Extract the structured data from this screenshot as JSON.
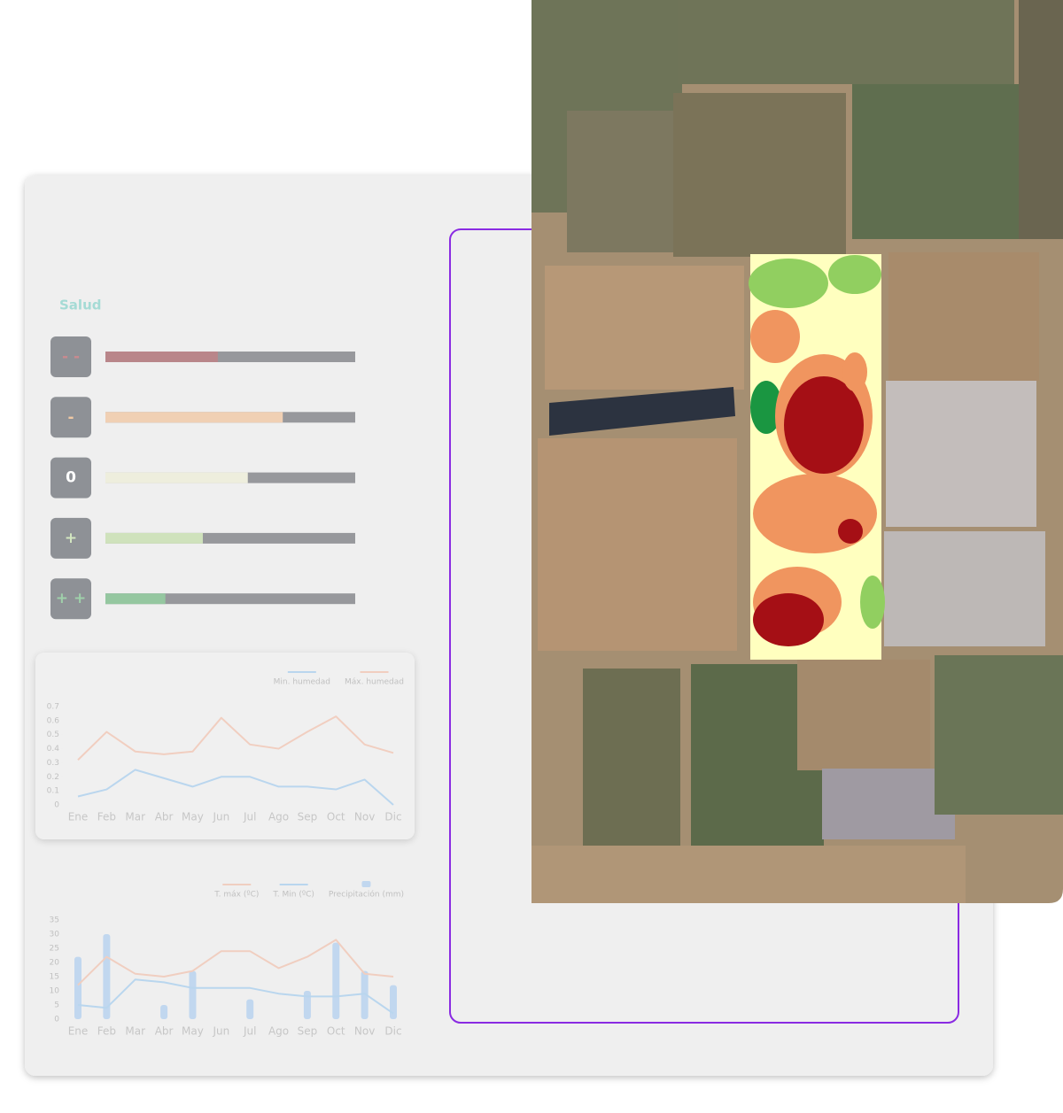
{
  "salud": {
    "title": "Salud",
    "levels": [
      {
        "label": "- -",
        "value": 0.45,
        "color": "#b9868a",
        "text_color": "#c98a8f"
      },
      {
        "label": "-",
        "value": 0.71,
        "color": "#f0d0b4",
        "text_color": "#f0c9a4"
      },
      {
        "label": "0",
        "value": 0.57,
        "color": "#eeeedd",
        "text_color": "#ffffff"
      },
      {
        "label": "+",
        "value": 0.39,
        "color": "#cfe2bc",
        "text_color": "#d3e6c0"
      },
      {
        "label": "+ +",
        "value": 0.24,
        "color": "#95c7a0",
        "text_color": "#9fd0aa"
      }
    ]
  },
  "chart_data": [
    {
      "type": "line",
      "legend": "top-right",
      "categories": [
        "Ene",
        "Feb",
        "Mar",
        "Abr",
        "May",
        "Jun",
        "Jul",
        "Ago",
        "Sep",
        "Oct",
        "Nov",
        "Dic"
      ],
      "ylim": [
        0,
        0.7
      ],
      "yticks": [
        0,
        0.1,
        0.2,
        0.3,
        0.4,
        0.5,
        0.6,
        0.7
      ],
      "series": [
        {
          "name": "Min. humedad",
          "color": "#8ec2ee",
          "values": [
            0.06,
            0.11,
            0.25,
            0.19,
            0.13,
            0.2,
            0.2,
            0.13,
            0.13,
            0.11,
            0.18,
            0
          ]
        },
        {
          "name": "Máx. humedad",
          "color": "#f2b49a",
          "values": [
            0.32,
            0.52,
            0.38,
            0.36,
            0.38,
            0.62,
            0.43,
            0.4,
            0.52,
            0.63,
            0.43,
            0.37
          ]
        }
      ]
    },
    {
      "type": "combo",
      "legend": "top-right",
      "categories": [
        "Ene",
        "Feb",
        "Mar",
        "Abr",
        "May",
        "Jun",
        "Jul",
        "Ago",
        "Sep",
        "Oct",
        "Nov",
        "Dic"
      ],
      "ylim": [
        0,
        35
      ],
      "yticks": [
        0,
        5,
        10,
        15,
        20,
        25,
        30,
        35
      ],
      "series": [
        {
          "name": "T. máx (ºC)",
          "type": "line",
          "color": "#f2b49a",
          "values": [
            12,
            22,
            16,
            15,
            17,
            24,
            24,
            18,
            22,
            28,
            16,
            15
          ]
        },
        {
          "name": "T. Min (ºC)",
          "type": "line",
          "color": "#8ec2ee",
          "values": [
            5,
            4,
            14,
            13,
            11,
            11,
            11,
            9,
            8,
            8,
            9,
            2
          ]
        },
        {
          "name": "Precipitación (mm)",
          "type": "bar",
          "color": "#9cc4f0",
          "values": [
            22,
            30,
            0,
            5,
            17,
            0,
            7,
            0,
            10,
            27,
            17,
            12
          ]
        }
      ]
    }
  ]
}
